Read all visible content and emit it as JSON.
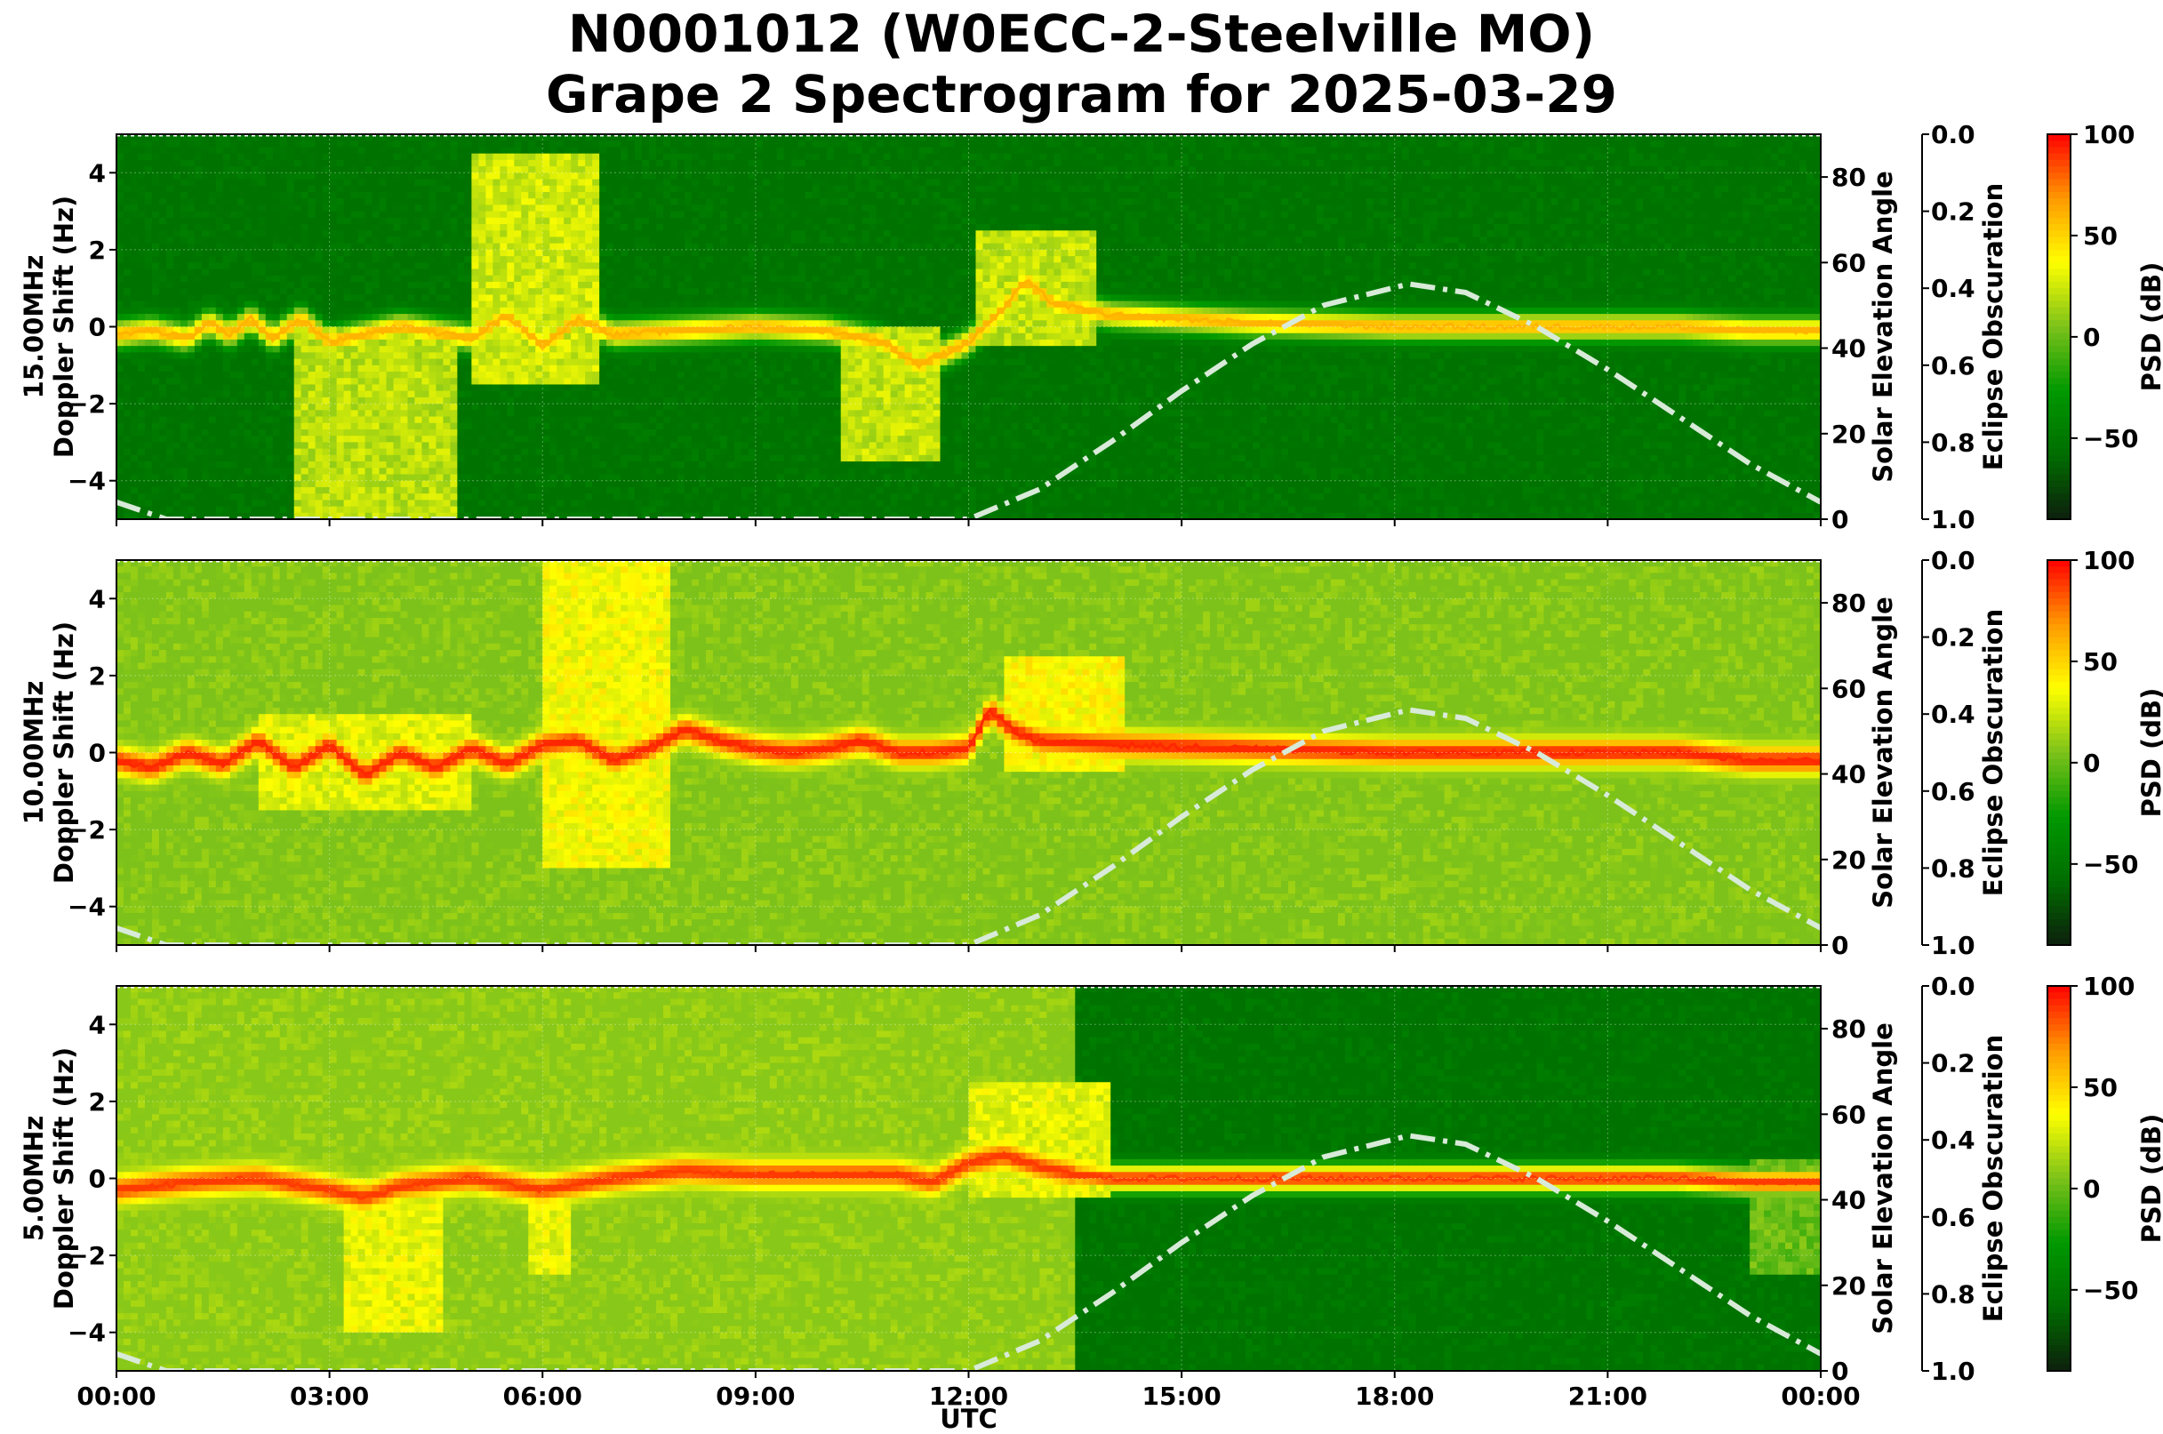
{
  "figure": {
    "title_line1": "N0001012 (W0ECC-2-Steelville MO)",
    "title_line2": "Grape 2 Spectrogram for 2025-03-29"
  },
  "chart_data": {
    "type": "heatmap",
    "x_label": "UTC",
    "x_ticks": [
      "00:00",
      "03:00",
      "06:00",
      "09:00",
      "12:00",
      "15:00",
      "18:00",
      "21:00",
      "00:00"
    ],
    "x_range_hours": [
      0,
      24
    ],
    "doppler_ylim": [
      -5,
      5
    ],
    "doppler_ticks": [
      4,
      2,
      0,
      -2,
      -4
    ],
    "doppler_tick_labels": [
      "4",
      "2",
      "0",
      "−2",
      "−4"
    ],
    "doppler_label_suffix": "Doppler Shift (Hz)",
    "elevation_label": "Solar Elevation Angle",
    "elevation_ylim": [
      0,
      90
    ],
    "elevation_ticks": [
      0,
      20,
      40,
      60,
      80
    ],
    "obscuration_label": "Eclipse Obscuration",
    "obscuration_ticks": [
      "0.0",
      "0.2",
      "0.4",
      "0.6",
      "0.8",
      "1.0"
    ],
    "colorbar_label": "PSD (dB)",
    "colorbar_range": [
      -90,
      100
    ],
    "colorbar_ticks": [
      100,
      50,
      0,
      -50
    ],
    "colorbar_tick_labels": [
      "100",
      "50",
      "0",
      "−50"
    ],
    "colormap": [
      "#0d1f0d",
      "#006d00",
      "#009900",
      "#7cc21a",
      "#ffff00",
      "#ff9900",
      "#ff0000"
    ],
    "solar_elevation_curve": {
      "style": "dash-dot",
      "color": "#d8ead8",
      "hours": [
        0.0,
        0.7,
        12.0,
        13.0,
        14.0,
        15.0,
        16.0,
        17.0,
        18.2,
        19.0,
        20.0,
        21.0,
        22.0,
        23.0,
        24.0
      ],
      "degrees": [
        4,
        0,
        0,
        7,
        18,
        30,
        41,
        50,
        55,
        53,
        45,
        35,
        24,
        13,
        4
      ]
    },
    "panels": [
      {
        "frequency": "15.00MHz",
        "noise_floor_db": -55,
        "carrier_trace": {
          "hours": [
            0,
            0.5,
            1,
            1.3,
            1.6,
            1.9,
            2.2,
            2.6,
            3,
            4,
            5,
            5.5,
            6,
            6.5,
            7,
            8,
            9,
            10,
            10.8,
            11.3,
            12,
            12.5,
            12.8,
            13.2,
            14,
            16,
            18,
            20,
            22,
            23,
            24
          ],
          "hz": [
            -0.2,
            -0.1,
            -0.3,
            0.1,
            -0.2,
            0.2,
            -0.3,
            0.2,
            -0.4,
            0.0,
            -0.3,
            0.3,
            -0.5,
            0.2,
            -0.2,
            -0.1,
            0.0,
            -0.1,
            -0.4,
            -1.0,
            -0.4,
            0.5,
            1.2,
            0.6,
            0.3,
            0.1,
            0.0,
            0.0,
            0.0,
            -0.1,
            -0.1
          ],
          "db": 60
        },
        "features": [
          {
            "h0": 2.5,
            "h1": 4.8,
            "hz0": -5,
            "hz1": 0,
            "db": 20
          },
          {
            "h0": 5.0,
            "h1": 6.8,
            "hz0": -1.5,
            "hz1": 4.5,
            "db": 25
          },
          {
            "h0": 10.2,
            "h1": 11.6,
            "hz0": -3.5,
            "hz1": 0,
            "db": 22
          },
          {
            "h0": 12.1,
            "h1": 13.8,
            "hz0": -0.5,
            "hz1": 2.5,
            "db": 22
          }
        ]
      },
      {
        "frequency": "10.00MHz",
        "noise_floor_db": 5,
        "carrier_trace": {
          "hours": [
            0,
            0.5,
            1,
            1.5,
            2,
            2.5,
            3,
            3.5,
            4,
            4.5,
            5,
            5.5,
            6,
            6.5,
            7,
            7.5,
            8,
            8.5,
            9,
            9.5,
            10,
            10.5,
            11,
            11.5,
            12,
            12.3,
            12.6,
            13,
            14,
            16,
            18,
            20,
            22,
            23,
            24
          ],
          "hz": [
            -0.2,
            -0.4,
            0.0,
            -0.3,
            0.3,
            -0.4,
            0.2,
            -0.6,
            0.0,
            -0.4,
            0.1,
            -0.3,
            0.2,
            0.3,
            -0.2,
            0.1,
            0.6,
            0.3,
            0.1,
            0.0,
            0.1,
            0.3,
            0.0,
            0.0,
            0.1,
            1.1,
            0.6,
            0.3,
            0.2,
            0.1,
            0.0,
            0.0,
            0.0,
            -0.2,
            -0.2
          ],
          "db": 92
        },
        "features": [
          {
            "h0": 6.0,
            "h1": 7.8,
            "hz0": -3.0,
            "hz1": 5.0,
            "db": 35
          },
          {
            "h0": 12.5,
            "h1": 14.2,
            "hz0": -0.5,
            "hz1": 2.5,
            "db": 38
          },
          {
            "h0": 2.0,
            "h1": 5.0,
            "hz0": -1.5,
            "hz1": 1.0,
            "db": 30
          }
        ]
      },
      {
        "frequency": "5.00MHz",
        "noise_floor_db": 8,
        "noise_floor_after_hour": 13.5,
        "noise_floor_after_db": -55,
        "carrier_trace": {
          "hours": [
            0,
            1,
            2,
            3,
            3.5,
            4,
            5,
            6,
            7,
            8,
            9,
            10,
            11,
            11.5,
            12,
            12.5,
            13,
            13.5,
            14,
            16,
            18,
            20,
            22,
            23,
            24
          ],
          "hz": [
            -0.3,
            -0.1,
            0.0,
            -0.3,
            -0.5,
            -0.2,
            0.0,
            -0.3,
            0.0,
            0.2,
            0.1,
            0.1,
            0.1,
            -0.1,
            0.4,
            0.6,
            0.3,
            0.1,
            0.0,
            0.0,
            0.0,
            0.0,
            0.0,
            -0.1,
            -0.1
          ],
          "db": 88
        },
        "features": [
          {
            "h0": 3.2,
            "h1": 4.6,
            "hz0": -4.0,
            "hz1": 0,
            "db": 32
          },
          {
            "h0": 5.8,
            "h1": 6.4,
            "hz0": -2.5,
            "hz1": 0,
            "db": 32
          },
          {
            "h0": 12.0,
            "h1": 14.0,
            "hz0": -0.5,
            "hz1": 2.5,
            "db": 30
          },
          {
            "h0": 23.0,
            "h1": 24.0,
            "hz0": -2.5,
            "hz1": 0.5,
            "db": 0
          }
        ]
      }
    ]
  }
}
